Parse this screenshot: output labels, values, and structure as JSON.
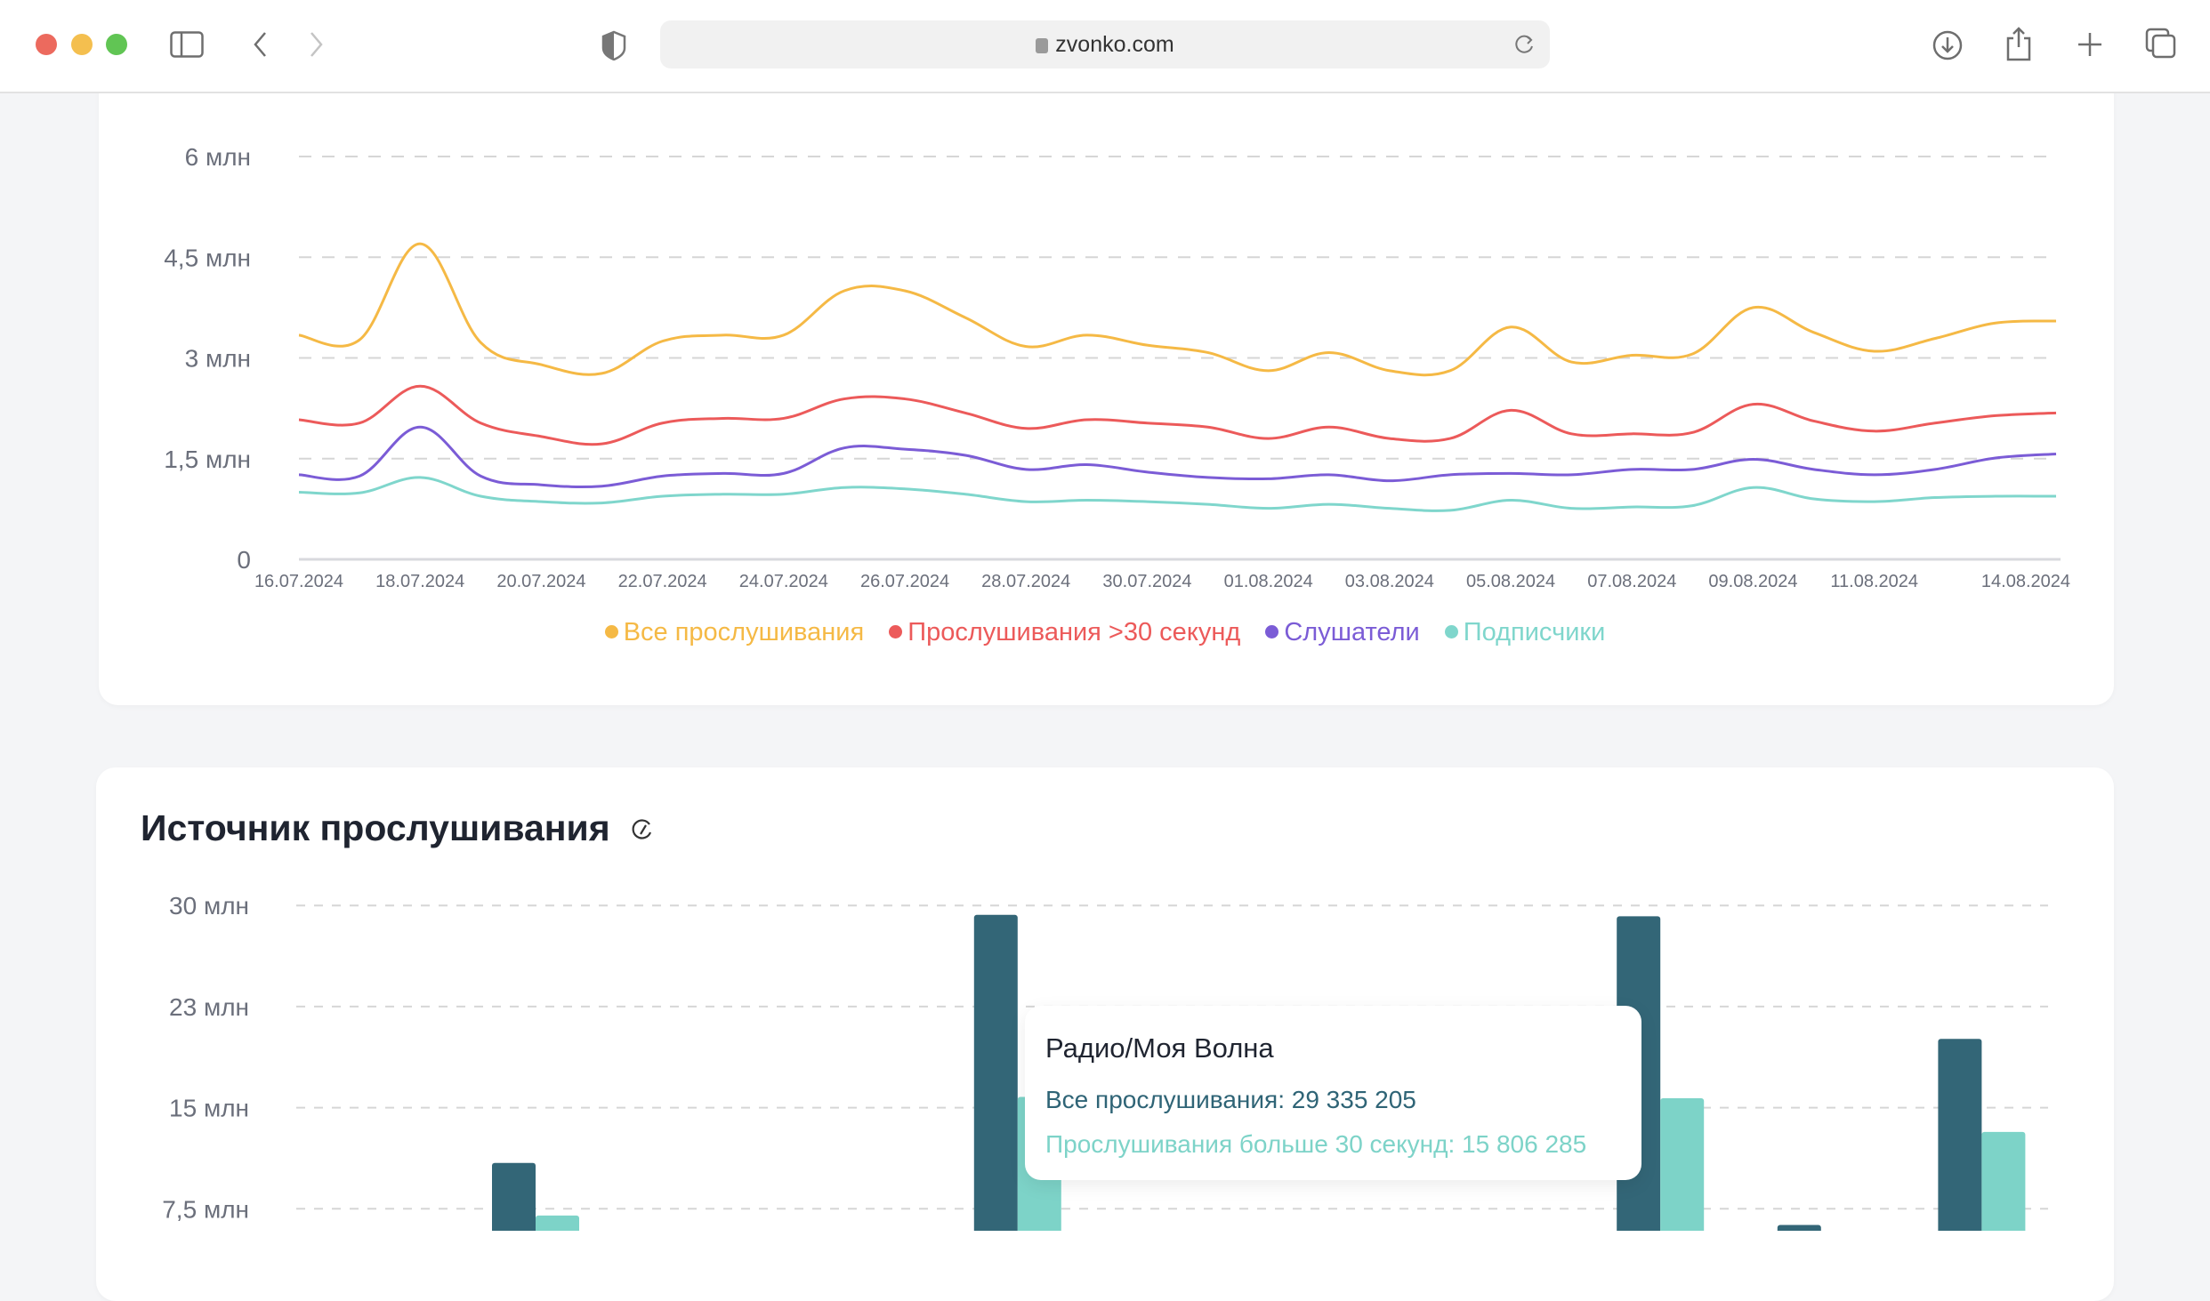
{
  "browser": {
    "url": "zvonko.com"
  },
  "line_chart_legend": [
    "Все прослушивания",
    "Прослушивания >30 секунд",
    "Слушатели",
    "Подписчики"
  ],
  "bar_section": {
    "title": "Источник прослушивания"
  },
  "tooltip": {
    "title": "Радио/Моя Волна",
    "line1_label": "Все прослушивания",
    "line1_value": ": 29 335 205",
    "line2_label": "Прослушивания больше 30 секунд",
    "line2_value": ": 15 806 285"
  },
  "chart_data": [
    {
      "type": "line",
      "ylim": [
        0,
        6
      ],
      "y_ticks": [
        0,
        1.5,
        3,
        4.5,
        6
      ],
      "y_tick_labels": [
        "0",
        "1,5 млн",
        "3 млн",
        "4,5 млн",
        "6 млн"
      ],
      "grid": true,
      "legend": "bottom",
      "x": [
        "16.07.2024",
        "17.07.2024",
        "18.07.2024",
        "19.07.2024",
        "20.07.2024",
        "21.07.2024",
        "22.07.2024",
        "23.07.2024",
        "24.07.2024",
        "25.07.2024",
        "26.07.2024",
        "27.07.2024",
        "28.07.2024",
        "29.07.2024",
        "30.07.2024",
        "31.07.2024",
        "01.08.2024",
        "02.08.2024",
        "03.08.2024",
        "04.08.2024",
        "05.08.2024",
        "06.08.2024",
        "07.08.2024",
        "08.08.2024",
        "09.08.2024",
        "10.08.2024",
        "11.08.2024",
        "12.08.2024",
        "13.08.2024",
        "14.08.2024"
      ],
      "x_tick_labels": [
        "16.07.2024",
        "18.07.2024",
        "20.07.2024",
        "22.07.2024",
        "24.07.2024",
        "26.07.2024",
        "28.07.2024",
        "30.07.2024",
        "01.08.2024",
        "03.08.2024",
        "05.08.2024",
        "07.08.2024",
        "09.08.2024",
        "11.08.2024",
        "14.08.2024"
      ],
      "series": [
        {
          "name": "Все прослушивания",
          "color": "#f5b945",
          "values": [
            3.34,
            3.27,
            4.7,
            3.23,
            2.9,
            2.77,
            3.25,
            3.34,
            3.34,
            4.0,
            4.0,
            3.6,
            3.17,
            3.34,
            3.19,
            3.08,
            2.81,
            3.08,
            2.81,
            2.81,
            3.46,
            2.94,
            3.04,
            3.06,
            3.75,
            3.38,
            3.1,
            3.29,
            3.52,
            3.55
          ]
        },
        {
          "name": "Прослушивания >30 секунд",
          "color": "#ec5a5a",
          "values": [
            2.08,
            2.03,
            2.58,
            2.03,
            1.83,
            1.72,
            2.03,
            2.1,
            2.1,
            2.39,
            2.39,
            2.18,
            1.95,
            2.08,
            2.03,
            1.97,
            1.8,
            1.97,
            1.8,
            1.8,
            2.22,
            1.87,
            1.87,
            1.89,
            2.31,
            2.06,
            1.91,
            2.03,
            2.14,
            2.18
          ]
        },
        {
          "name": "Слушатели",
          "color": "#7b5cd6",
          "values": [
            1.26,
            1.24,
            1.97,
            1.24,
            1.11,
            1.09,
            1.24,
            1.28,
            1.28,
            1.66,
            1.64,
            1.55,
            1.34,
            1.41,
            1.3,
            1.22,
            1.2,
            1.26,
            1.17,
            1.26,
            1.28,
            1.26,
            1.34,
            1.34,
            1.49,
            1.34,
            1.26,
            1.34,
            1.51,
            1.57
          ]
        },
        {
          "name": "Подписчики",
          "color": "#7fd6cc",
          "values": [
            1.0,
            0.99,
            1.22,
            0.94,
            0.86,
            0.84,
            0.94,
            0.97,
            0.97,
            1.07,
            1.05,
            0.97,
            0.86,
            0.88,
            0.86,
            0.82,
            0.76,
            0.82,
            0.76,
            0.73,
            0.88,
            0.76,
            0.78,
            0.8,
            1.07,
            0.9,
            0.86,
            0.92,
            0.94,
            0.94
          ]
        }
      ]
    },
    {
      "type": "bar",
      "title": "Источник прослушивания",
      "y_ticks": [
        7.5,
        15,
        22.5,
        30
      ],
      "y_tick_labels": [
        "7,5 млн",
        "15 млн",
        "23 млн",
        "30 млн"
      ],
      "grid": true,
      "series": [
        {
          "name": "Все прослушивания",
          "color": "#336677",
          "values": [
            10.9,
            null,
            null,
            29.3,
            null,
            null,
            null,
            29.2,
            6.3,
            20.1
          ]
        },
        {
          "name": "Прослушивания больше 30 секунд",
          "color": "#7dd3c8",
          "values": [
            7.0,
            null,
            null,
            15.8,
            null,
            null,
            null,
            15.7,
            null,
            13.2
          ]
        }
      ]
    }
  ]
}
